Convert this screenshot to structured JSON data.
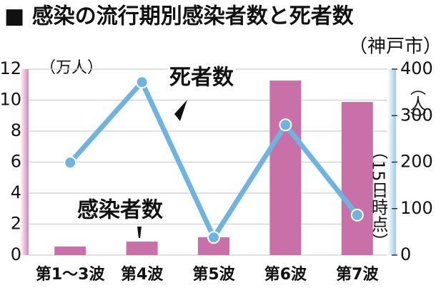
{
  "chart_data": {
    "type": "bar_line",
    "title": "■ 感染の流行期別感染者数と死者数",
    "subtitle": "（神戸市）",
    "ylabel": "（万人）",
    "y2label": "（人）",
    "note": "（15日時点）",
    "categories": [
      "第1～3波",
      "第4波",
      "第5波",
      "第6波",
      "第7波"
    ],
    "series": [
      {
        "name": "感染者数",
        "type": "bar",
        "axis": "y",
        "color": "#c970a9",
        "values": [
          0.55,
          0.87,
          1.15,
          11.26,
          9.88
        ]
      },
      {
        "name": "死者数",
        "type": "line",
        "axis": "y2",
        "color": "#6db4e2",
        "values": [
          199,
          372,
          38,
          280,
          86
        ]
      }
    ],
    "ylim": [
      0,
      12
    ],
    "yticks": [
      0,
      2,
      4,
      6,
      8,
      10,
      12
    ],
    "y2lim": [
      0,
      400
    ],
    "y2ticks": [
      0,
      100,
      200,
      300,
      400
    ],
    "grid": true
  }
}
